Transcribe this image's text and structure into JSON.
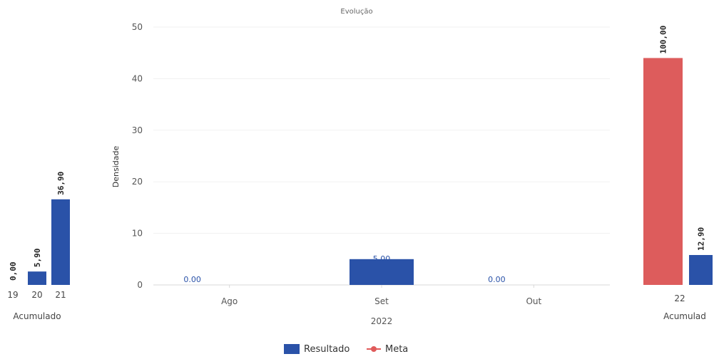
{
  "chart_data": [
    {
      "type": "bar",
      "title": "Evolução",
      "xlabel": "2022",
      "ylabel": "Densidade",
      "ylim": [
        0,
        50
      ],
      "yticks": [
        0,
        10,
        20,
        30,
        40,
        50
      ],
      "grid": true,
      "categories": [
        "Ago",
        "Set",
        "Out"
      ],
      "series": [
        {
          "name": "Resultado",
          "values": [
            0.0,
            5.0,
            0.0
          ],
          "labels": [
            "0.00",
            "5.00",
            "0.00"
          ]
        }
      ]
    },
    {
      "type": "bar",
      "xlabel": "Acumulado",
      "ylim": [
        0,
        50
      ],
      "categories": [
        "19",
        "20",
        "21"
      ],
      "series": [
        {
          "name": "Resultado",
          "values": [
            0.0,
            2.6,
            16.6
          ],
          "labels": [
            "0,00",
            "5,90",
            "36,90"
          ]
        }
      ]
    },
    {
      "type": "bar",
      "xlabel": "Acumulad",
      "ylim": [
        0,
        50
      ],
      "categories": [
        "22"
      ],
      "series": [
        {
          "name": "Meta",
          "values": [
            44.0
          ],
          "labels": [
            "100,00"
          ]
        },
        {
          "name": "Resultado",
          "values": [
            5.8
          ],
          "labels": [
            "12,90"
          ]
        }
      ]
    }
  ],
  "legend": {
    "placement": "bottom",
    "items": [
      {
        "label": "Resultado",
        "color": "#2a52a8",
        "marker": "square"
      },
      {
        "label": "Meta",
        "color": "#e05a5a",
        "marker": "line-dot"
      }
    ]
  },
  "colors": {
    "resultado": "#2a52a8",
    "meta": "#dd5c5c"
  }
}
